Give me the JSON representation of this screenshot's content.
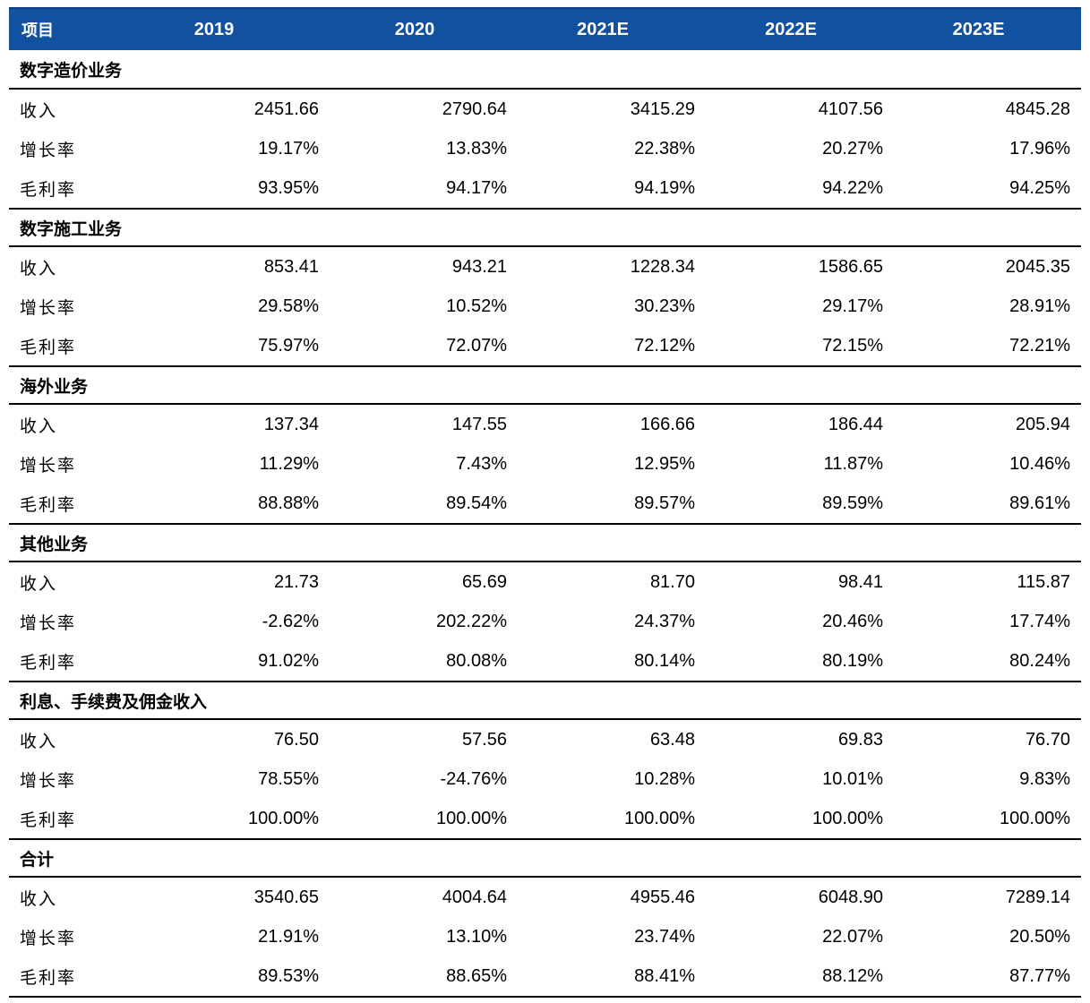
{
  "header": {
    "item": "项目",
    "years": [
      "2019",
      "2020",
      "2021E",
      "2022E",
      "2023E"
    ]
  },
  "sections": [
    {
      "title": "数字造价业务",
      "rows": [
        {
          "label": "收入",
          "values": [
            "2451.66",
            "2790.64",
            "3415.29",
            "4107.56",
            "4845.28"
          ]
        },
        {
          "label": "增长率",
          "values": [
            "19.17%",
            "13.83%",
            "22.38%",
            "20.27%",
            "17.96%"
          ]
        },
        {
          "label": "毛利率",
          "values": [
            "93.95%",
            "94.17%",
            "94.19%",
            "94.22%",
            "94.25%"
          ]
        }
      ]
    },
    {
      "title": "数字施工业务",
      "rows": [
        {
          "label": "收入",
          "values": [
            "853.41",
            "943.21",
            "1228.34",
            "1586.65",
            "2045.35"
          ]
        },
        {
          "label": "增长率",
          "values": [
            "29.58%",
            "10.52%",
            "30.23%",
            "29.17%",
            "28.91%"
          ]
        },
        {
          "label": "毛利率",
          "values": [
            "75.97%",
            "72.07%",
            "72.12%",
            "72.15%",
            "72.21%"
          ]
        }
      ]
    },
    {
      "title": "海外业务",
      "rows": [
        {
          "label": "收入",
          "values": [
            "137.34",
            "147.55",
            "166.66",
            "186.44",
            "205.94"
          ]
        },
        {
          "label": "增长率",
          "values": [
            "11.29%",
            "7.43%",
            "12.95%",
            "11.87%",
            "10.46%"
          ]
        },
        {
          "label": "毛利率",
          "values": [
            "88.88%",
            "89.54%",
            "89.57%",
            "89.59%",
            "89.61%"
          ]
        }
      ]
    },
    {
      "title": "其他业务",
      "rows": [
        {
          "label": "收入",
          "values": [
            "21.73",
            "65.69",
            "81.70",
            "98.41",
            "115.87"
          ]
        },
        {
          "label": "增长率",
          "values": [
            "-2.62%",
            "202.22%",
            "24.37%",
            "20.46%",
            "17.74%"
          ]
        },
        {
          "label": "毛利率",
          "values": [
            "91.02%",
            "80.08%",
            "80.14%",
            "80.19%",
            "80.24%"
          ]
        }
      ]
    },
    {
      "title": "利息、手续费及佣金收入",
      "rows": [
        {
          "label": "收入",
          "values": [
            "76.50",
            "57.56",
            "63.48",
            "69.83",
            "76.70"
          ]
        },
        {
          "label": "增长率",
          "values": [
            "78.55%",
            "-24.76%",
            "10.28%",
            "10.01%",
            "9.83%"
          ]
        },
        {
          "label": "毛利率",
          "values": [
            "100.00%",
            "100.00%",
            "100.00%",
            "100.00%",
            "100.00%"
          ]
        }
      ]
    },
    {
      "title": "合计",
      "rows": [
        {
          "label": "收入",
          "values": [
            "3540.65",
            "4004.64",
            "4955.46",
            "6048.90",
            "7289.14"
          ]
        },
        {
          "label": "增长率",
          "values": [
            "21.91%",
            "13.10%",
            "23.74%",
            "22.07%",
            "20.50%"
          ]
        },
        {
          "label": "毛利率",
          "values": [
            "89.53%",
            "88.65%",
            "88.41%",
            "88.12%",
            "87.77%"
          ]
        }
      ]
    }
  ]
}
